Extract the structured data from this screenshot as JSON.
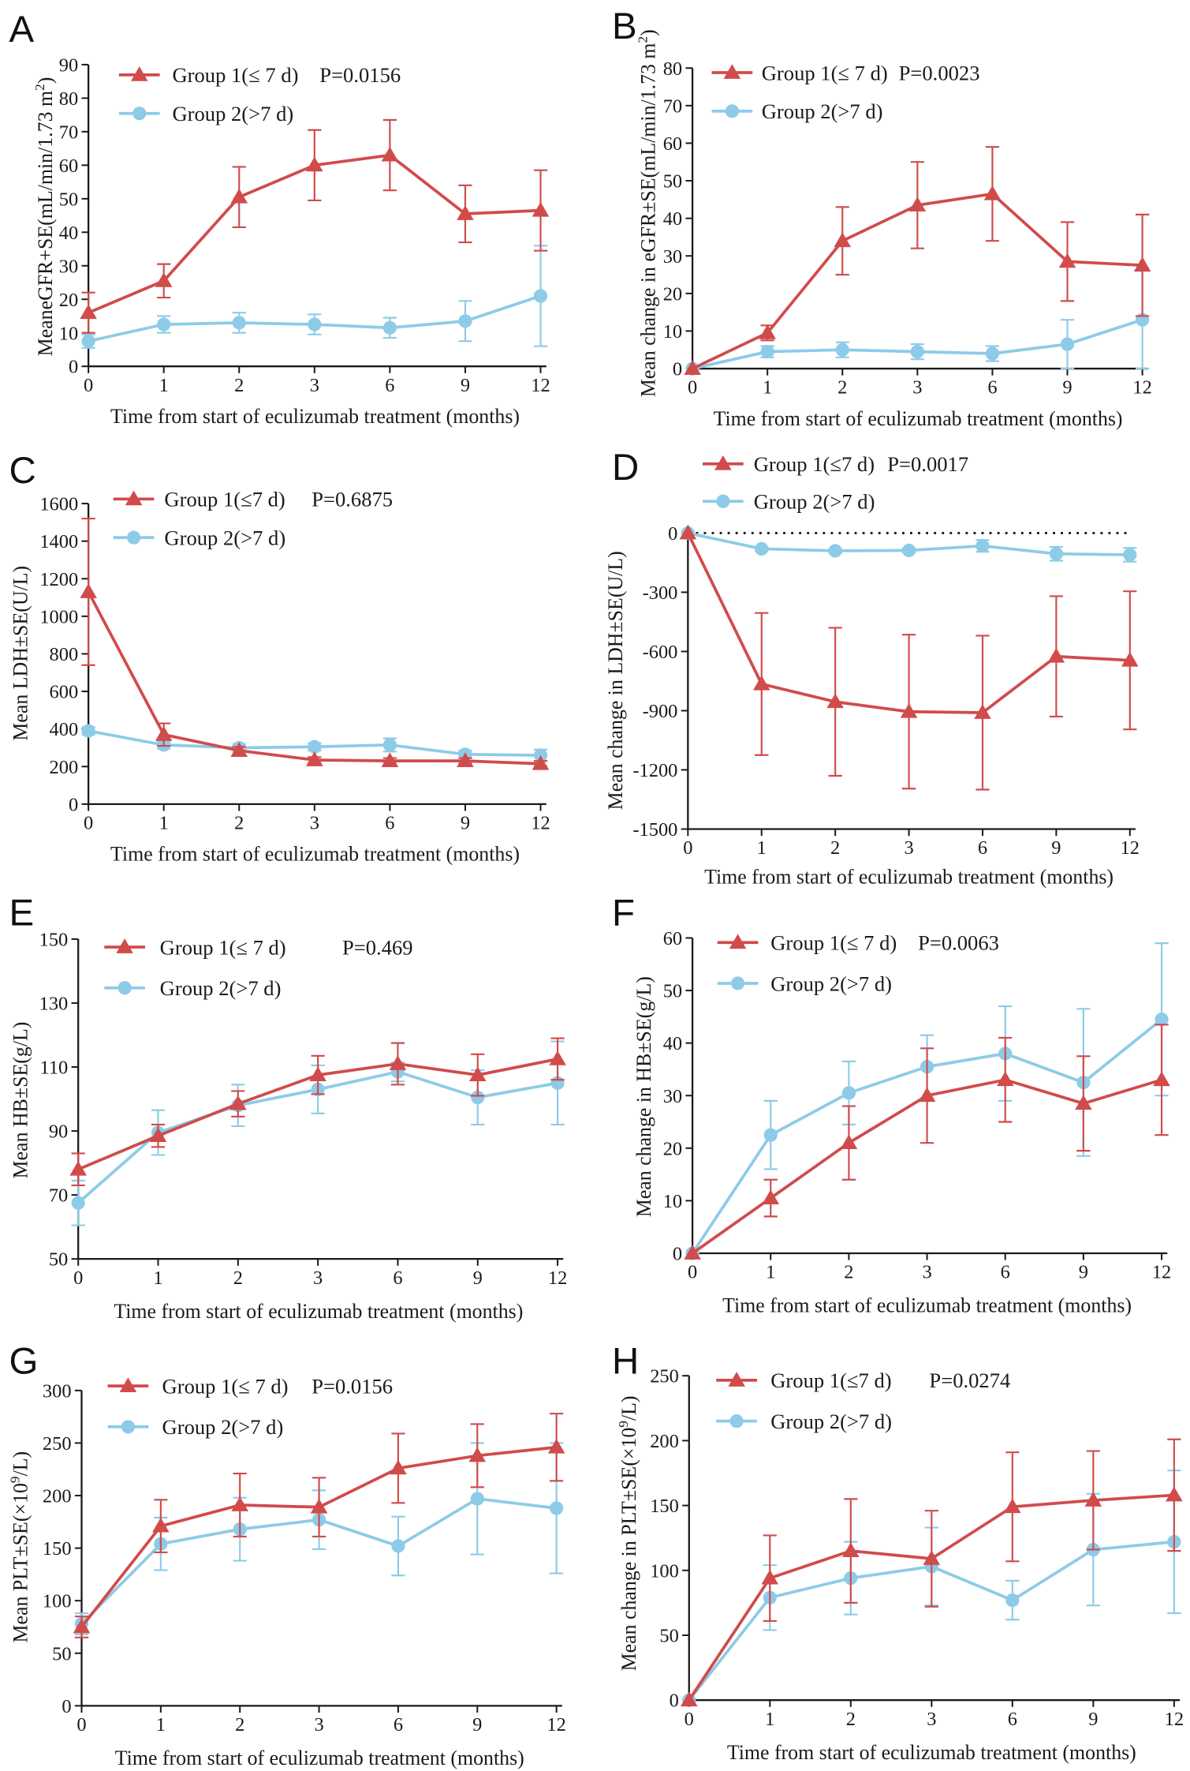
{
  "chart_data": [
    {
      "panel": "A",
      "type": "line",
      "xlabel": "Time from start of eculizumab treatment (months)",
      "ylabel": [
        {
          "t": "MeaneGFR+SE(mL/min/1.73 m"
        },
        {
          "t": "2",
          "sup": true
        },
        {
          "t": ")"
        }
      ],
      "categories": [
        "0",
        "1",
        "2",
        "3",
        "6",
        "9",
        "12"
      ],
      "ylim": [
        0,
        90
      ],
      "yticks": [
        0,
        10,
        20,
        30,
        40,
        50,
        60,
        70,
        80,
        90
      ],
      "p_value": "P=0.0156",
      "series": [
        {
          "name": "Group 1(≤ 7 d)",
          "color": "#d14b4b",
          "values": [
            16,
            25.5,
            50.5,
            60,
            63,
            45.5,
            46.5
          ],
          "se": [
            6,
            5,
            9,
            10.5,
            10.5,
            8.5,
            12
          ]
        },
        {
          "name": "Group 2(>7 d)",
          "color": "#8dcbe8",
          "values": [
            7.5,
            12.5,
            13,
            12.5,
            11.5,
            13.5,
            21
          ],
          "se": [
            2,
            2.5,
            3,
            3,
            3,
            6,
            15
          ]
        }
      ]
    },
    {
      "panel": "B",
      "type": "line",
      "xlabel": "Time from start of eculizumab treatment (months)",
      "ylabel": [
        {
          "t": "Mean change in eGFR±SE(mL/min/1.73 m"
        },
        {
          "t": "2",
          "sup": true
        },
        {
          "t": ")"
        }
      ],
      "categories": [
        "0",
        "1",
        "2",
        "3",
        "6",
        "9",
        "12"
      ],
      "ylim": [
        0,
        80
      ],
      "yticks": [
        0,
        10,
        20,
        30,
        40,
        50,
        60,
        70,
        80
      ],
      "p_value": "P=0.0023",
      "series": [
        {
          "name": "Group 1(≤ 7 d)",
          "color": "#d14b4b",
          "values": [
            0,
            9.5,
            34,
            43.5,
            46.5,
            28.5,
            27.5
          ],
          "se": [
            0,
            2,
            9,
            11.5,
            12.5,
            10.5,
            13.5
          ]
        },
        {
          "name": "Group 2(>7 d)",
          "color": "#8dcbe8",
          "values": [
            0,
            4.5,
            5,
            4.5,
            4,
            6.5,
            13
          ],
          "se": [
            0,
            1.5,
            2,
            2,
            2,
            6.5,
            13
          ]
        }
      ]
    },
    {
      "panel": "C",
      "type": "line",
      "xlabel": "Time from start of eculizumab treatment (months)",
      "ylabel": [
        {
          "t": "Mean LDH±SE(U/L)"
        }
      ],
      "categories": [
        "0",
        "1",
        "2",
        "3",
        "6",
        "9",
        "12"
      ],
      "ylim": [
        0,
        1600
      ],
      "yticks": [
        0,
        200,
        400,
        600,
        800,
        1000,
        1200,
        1400,
        1600
      ],
      "p_value": "P=0.6875",
      "series": [
        {
          "name": "Group 1(≤7 d)",
          "color": "#d14b4b",
          "values": [
            1130,
            370,
            285,
            235,
            230,
            230,
            215
          ],
          "se": [
            390,
            60,
            20,
            15,
            15,
            15,
            15
          ]
        },
        {
          "name": "Group 2(>7 d)",
          "color": "#8dcbe8",
          "values": [
            390,
            315,
            300,
            305,
            315,
            265,
            260
          ],
          "se": [
            20,
            20,
            20,
            20,
            35,
            20,
            30
          ]
        }
      ]
    },
    {
      "panel": "D",
      "type": "line",
      "xlabel": "Time from start of eculizumab treatment (months)",
      "ylabel": [
        {
          "t": "Mean change in LDH±SE(U/L)"
        }
      ],
      "categories": [
        "0",
        "1",
        "2",
        "3",
        "6",
        "9",
        "12"
      ],
      "ylim": [
        -1500,
        0
      ],
      "yticks": [
        0,
        -300,
        -600,
        -900,
        -1200,
        -1500
      ],
      "reference_line": 0,
      "p_value": "P=0.0017",
      "series": [
        {
          "name": "Group 1(≤7 d)",
          "color": "#d14b4b",
          "values": [
            0,
            -765,
            -855,
            -905,
            -910,
            -625,
            -645
          ],
          "se": [
            0,
            360,
            375,
            390,
            390,
            305,
            350
          ]
        },
        {
          "name": "Group 2(>7 d)",
          "color": "#8dcbe8",
          "values": [
            0,
            -80,
            -90,
            -88,
            -65,
            -105,
            -110
          ],
          "se": [
            0,
            10,
            10,
            10,
            30,
            35,
            35
          ]
        }
      ]
    },
    {
      "panel": "E",
      "type": "line",
      "xlabel": "Time from start of eculizumab treatment (months)",
      "ylabel": [
        {
          "t": "Mean HB±SE(g/L)"
        }
      ],
      "categories": [
        "0",
        "1",
        "2",
        "3",
        "6",
        "9",
        "12"
      ],
      "ylim": [
        50,
        150
      ],
      "yticks": [
        50,
        70,
        90,
        110,
        130,
        150
      ],
      "p_value": "P=0.469",
      "series": [
        {
          "name": "Group 1(≤ 7 d)",
          "color": "#d14b4b",
          "values": [
            78,
            88.5,
            98.5,
            107.5,
            111,
            107.5,
            112.5
          ],
          "se": [
            5,
            3.5,
            4,
            6,
            6.5,
            6.5,
            6.5
          ]
        },
        {
          "name": "Group 2(>7 d)",
          "color": "#8dcbe8",
          "values": [
            67.5,
            89.5,
            98,
            103,
            108.5,
            100.5,
            105
          ],
          "se": [
            7,
            7,
            6.5,
            7.5,
            3,
            8.5,
            13
          ]
        }
      ]
    },
    {
      "panel": "F",
      "type": "line",
      "xlabel": "Time from start of eculizumab treatment (months)",
      "ylabel": [
        {
          "t": "Mean change in HB±SE(g/L)"
        }
      ],
      "categories": [
        "0",
        "1",
        "2",
        "3",
        "6",
        "9",
        "12"
      ],
      "ylim": [
        0,
        60
      ],
      "yticks": [
        0,
        10,
        20,
        30,
        40,
        50,
        60
      ],
      "p_value": "P=0.0063",
      "series": [
        {
          "name": "Group 1(≤ 7 d)",
          "color": "#d14b4b",
          "values": [
            0,
            10.5,
            21,
            30,
            33,
            28.5,
            33
          ],
          "se": [
            0,
            3.5,
            7,
            9,
            8,
            9,
            10.5
          ]
        },
        {
          "name": "Group 2(>7 d)",
          "color": "#8dcbe8",
          "values": [
            0,
            22.5,
            30.5,
            35.5,
            38,
            32.5,
            44.5
          ],
          "se": [
            0,
            6.5,
            6,
            6,
            9,
            14,
            14.5
          ]
        }
      ]
    },
    {
      "panel": "G",
      "type": "line",
      "xlabel": "Time from start of eculizumab treatment (months)",
      "ylabel": [
        {
          "t": "Mean PLT±SE(×10"
        },
        {
          "t": "9",
          "sup": true
        },
        {
          "t": "/L)"
        }
      ],
      "categories": [
        "0",
        "1",
        "2",
        "3",
        "6",
        "9",
        "12"
      ],
      "ylim": [
        0,
        300
      ],
      "yticks": [
        0,
        50,
        100,
        150,
        200,
        250,
        300
      ],
      "p_value": "P=0.0156",
      "series": [
        {
          "name": "Group 1(≤ 7 d)",
          "color": "#d14b4b",
          "values": [
            75,
            171,
            191,
            189,
            226,
            238,
            246
          ],
          "se": [
            10,
            25,
            30,
            28,
            33,
            30,
            32
          ]
        },
        {
          "name": "Group 2(>7 d)",
          "color": "#8dcbe8",
          "values": [
            78,
            154,
            168,
            177,
            152,
            197,
            188
          ],
          "se": [
            10,
            25,
            30,
            28,
            28,
            53,
            62
          ]
        }
      ]
    },
    {
      "panel": "H",
      "type": "line",
      "xlabel": "Time from start of eculizumab treatment (months)",
      "ylabel": [
        {
          "t": "Mean change in PLT±SE(×10"
        },
        {
          "t": "9",
          "sup": true
        },
        {
          "t": "/L)"
        }
      ],
      "categories": [
        "0",
        "1",
        "2",
        "3",
        "6",
        "9",
        "12"
      ],
      "ylim": [
        0,
        250
      ],
      "yticks": [
        0,
        50,
        100,
        150,
        200,
        250
      ],
      "p_value": "P=0.0274",
      "series": [
        {
          "name": "Group 1(≤7 d)",
          "color": "#d14b4b",
          "values": [
            0,
            94,
            115,
            109,
            149,
            154,
            158
          ],
          "se": [
            0,
            33,
            40,
            37,
            42,
            38,
            43
          ]
        },
        {
          "name": "Group 2(>7 d)",
          "color": "#8dcbe8",
          "values": [
            0,
            79,
            94,
            103,
            77,
            116,
            122
          ],
          "se": [
            0,
            25,
            28,
            30,
            15,
            43,
            55
          ]
        }
      ]
    }
  ]
}
